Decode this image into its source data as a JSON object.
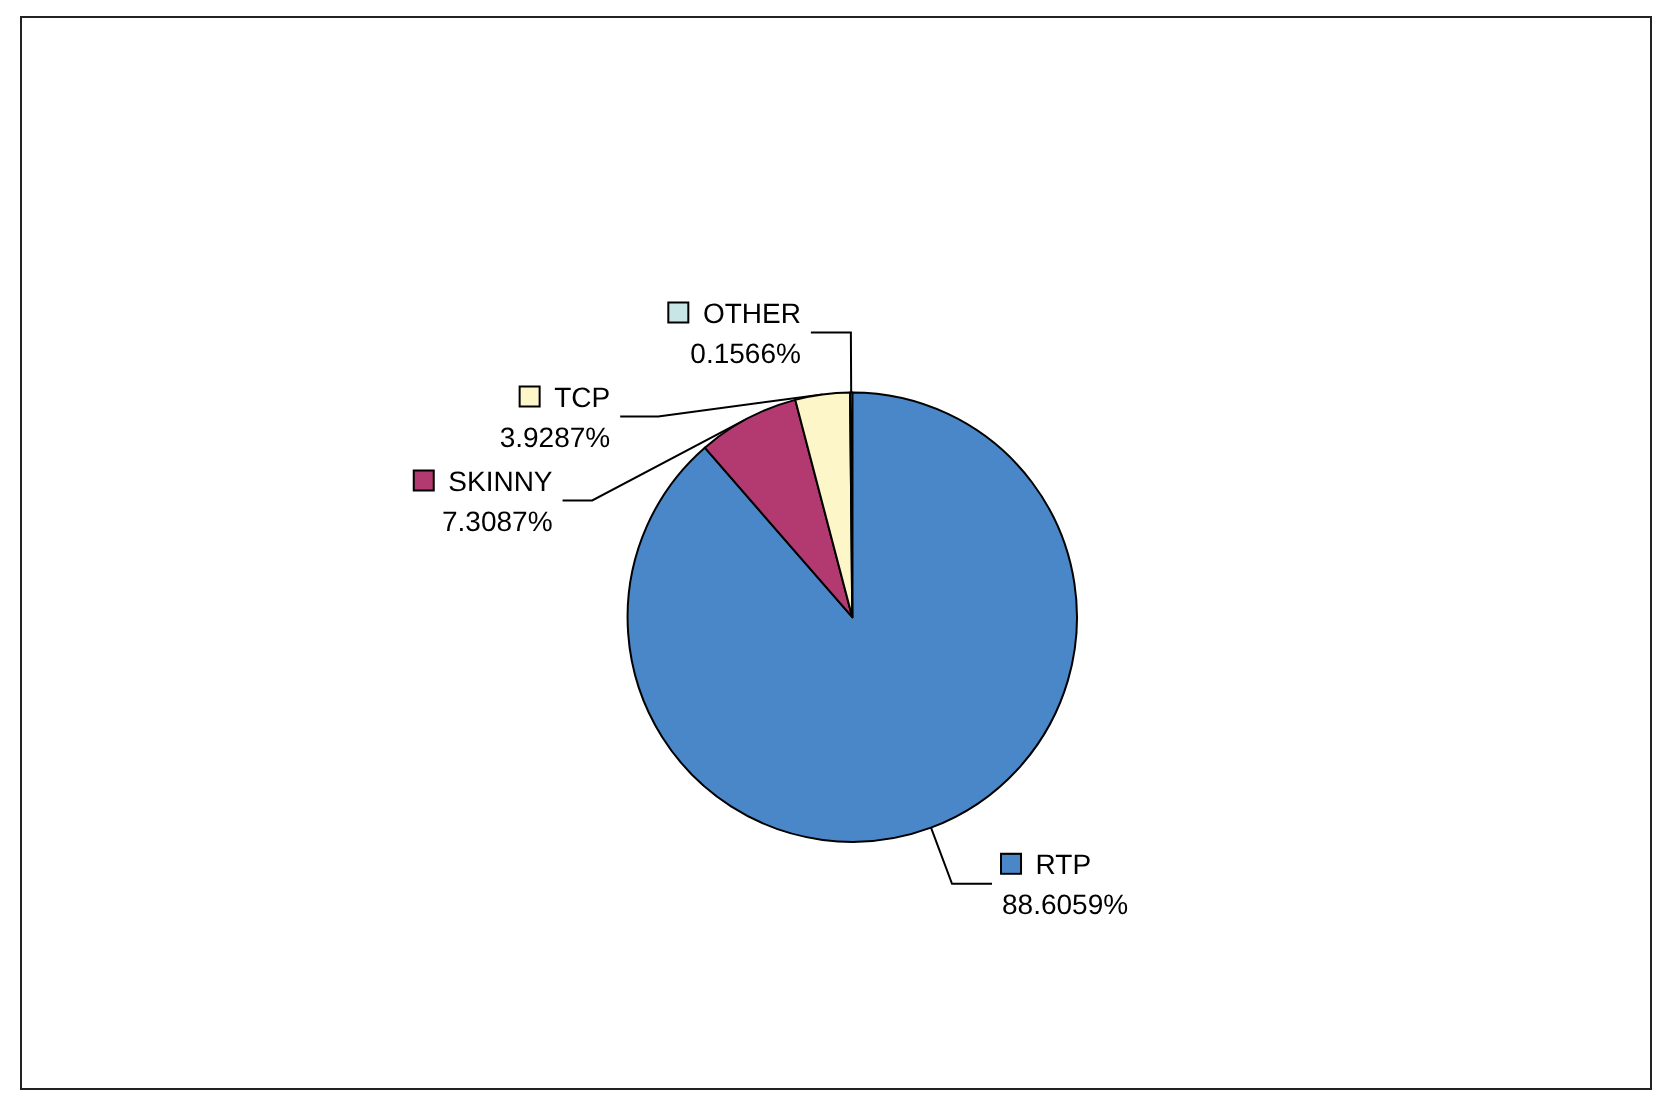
{
  "chart_data": {
    "type": "pie",
    "categories": [
      "RTP",
      "SKINNY",
      "TCP",
      "OTHER"
    ],
    "values": [
      88.6059,
      7.3087,
      3.9287,
      0.1566
    ],
    "value_labels": [
      "88.6059%",
      "7.3087%",
      "3.9287%",
      "0.1566%"
    ],
    "colors": [
      "#4a87c8",
      "#b23a70",
      "#fdf6c8",
      "#c9e6e6"
    ],
    "legend": "top left"
  }
}
